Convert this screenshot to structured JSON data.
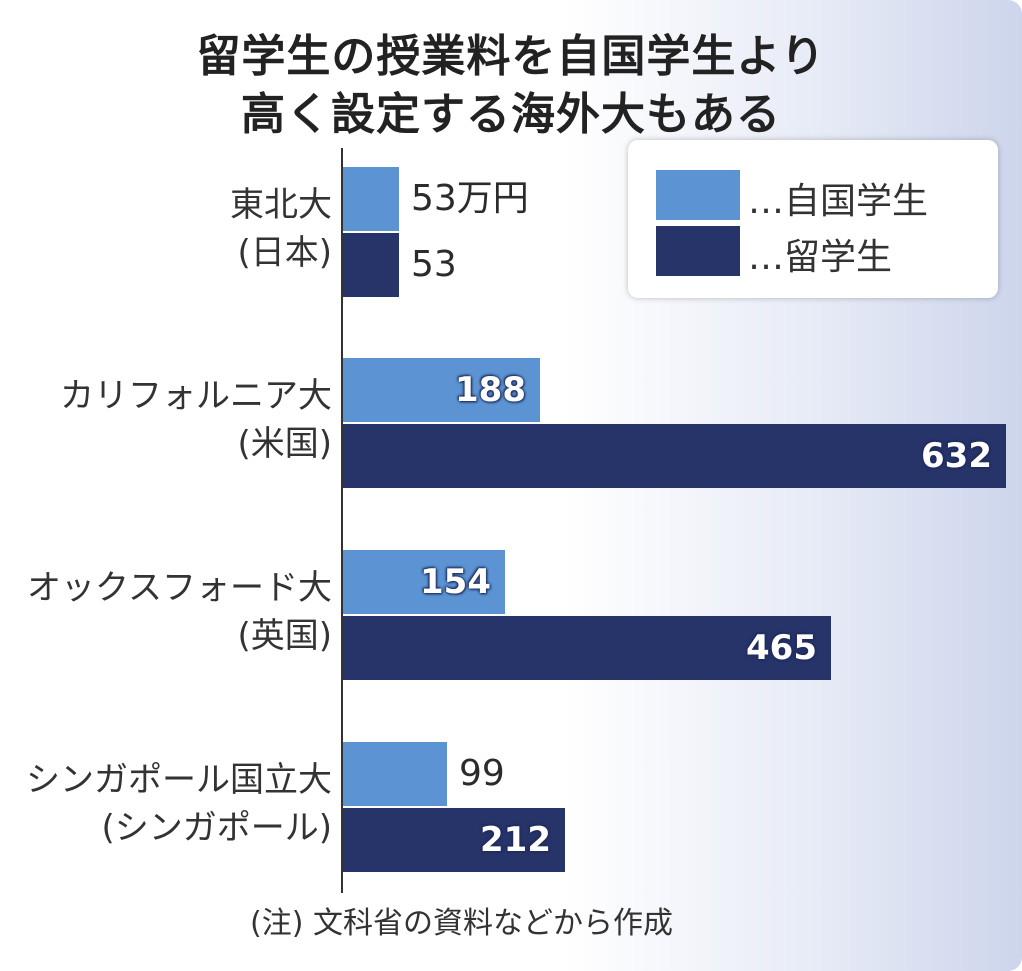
{
  "title": {
    "line1": "留学生の授業料を自国学生より",
    "line2": "高く設定する海外大もある"
  },
  "legend": {
    "domestic": "…自国学生",
    "international": "…留学生"
  },
  "colors": {
    "domestic": "#5b93d3",
    "international": "#27346a",
    "axis": "#333333"
  },
  "note": "(注) 文科省の資料などから作成",
  "chart_data": {
    "type": "bar",
    "orientation": "horizontal",
    "title": "留学生の授業料を自国学生より高く設定する海外大もある",
    "unit": "万円",
    "categories": [
      {
        "line1": "東北大",
        "line2": "(日本)"
      },
      {
        "line1": "カリフォルニア大",
        "line2": "(米国)"
      },
      {
        "line1": "オックスフォード大",
        "line2": "(英国)"
      },
      {
        "line1": "シンガポール国立大",
        "line2": "(シンガポール)"
      }
    ],
    "series": [
      {
        "name": "自国学生",
        "values": [
          53,
          188,
          154,
          99
        ],
        "labels": [
          "53万円",
          "188",
          "154",
          "99"
        ]
      },
      {
        "name": "留学生",
        "values": [
          53,
          632,
          465,
          212
        ],
        "labels": [
          "53",
          "632",
          "465",
          "212"
        ]
      }
    ],
    "xlim": [
      0,
      632
    ],
    "grid": false,
    "legend_position": "top-right"
  }
}
